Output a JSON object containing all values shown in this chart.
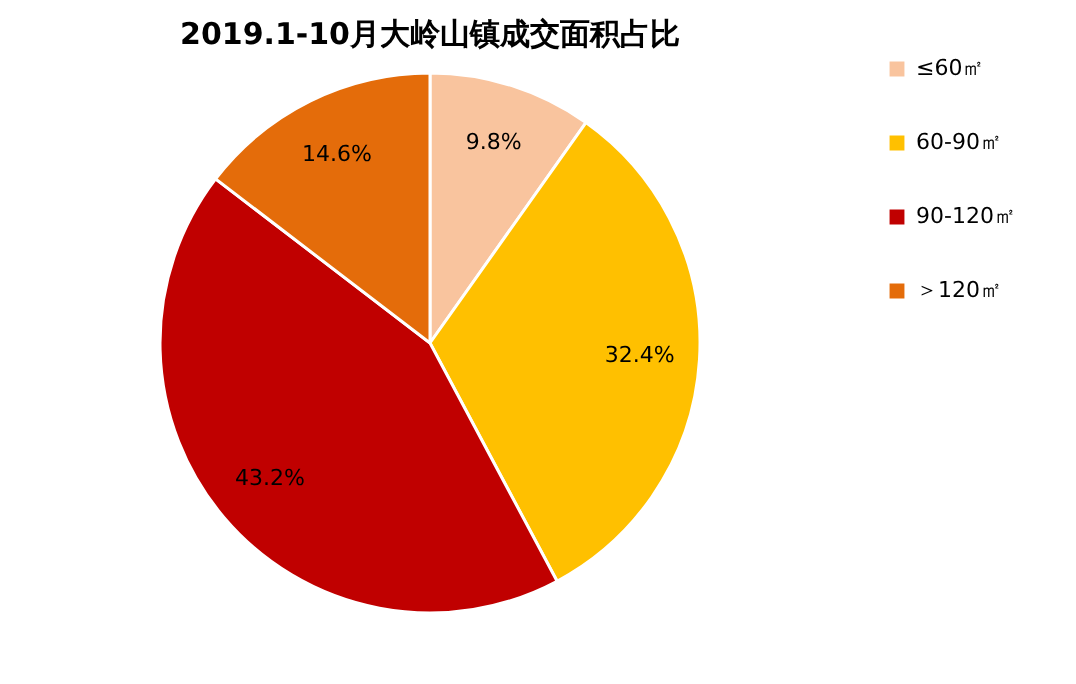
{
  "chart_data": {
    "type": "pie",
    "title": "2019.1-10月大岭山镇成交面积占比",
    "categories": [
      "≤60㎡",
      "60-90㎡",
      "90-120㎡",
      "＞120㎡"
    ],
    "values": [
      9.8,
      32.4,
      43.2,
      14.6
    ],
    "colors": [
      "#f9c49e",
      "#ffc000",
      "#c00000",
      "#e46c0a"
    ],
    "value_labels": [
      "9.8%",
      "32.4%",
      "43.2%",
      "14.6%"
    ],
    "legend": "right"
  }
}
